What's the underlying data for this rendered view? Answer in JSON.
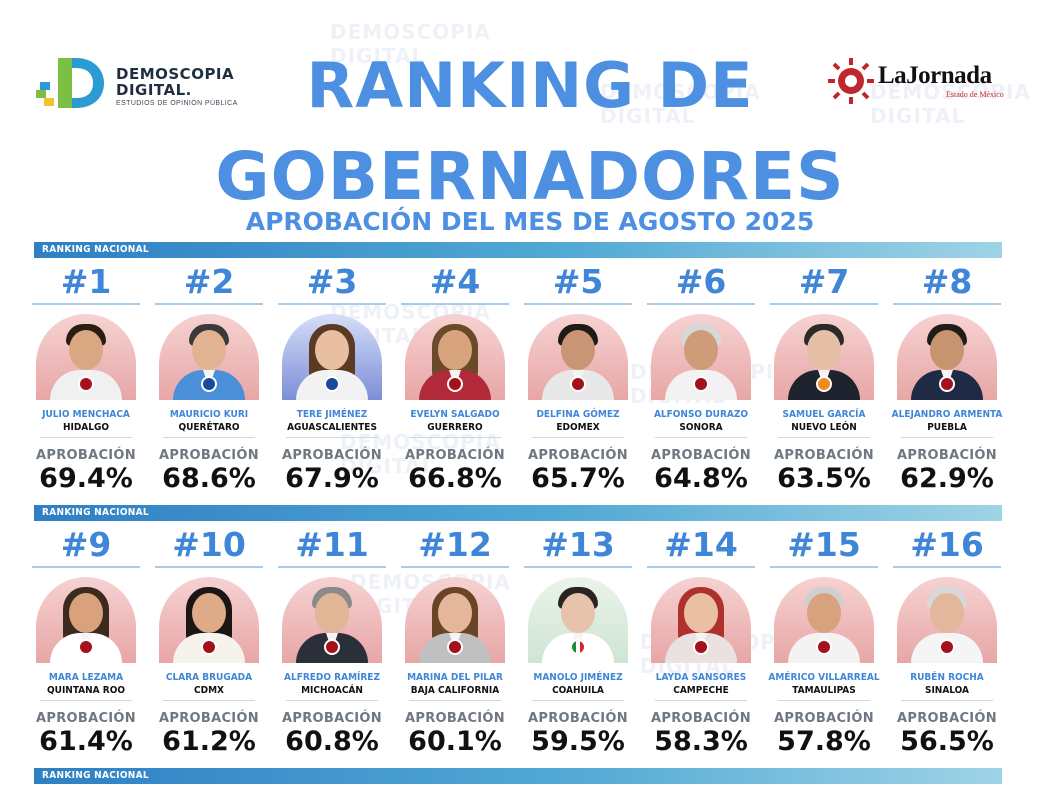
{
  "header": {
    "brand_name_line1": "DEMOSCOPIA",
    "brand_name_line2": "DIGITAL.",
    "brand_tagline": "ESTUDIOS DE OPINIÓN PÚBLICA",
    "title_line1": "RANKING DE",
    "title_line2": "GOBERNADORES",
    "subtitle": "APROBACIÓN DEL MES DE AGOSTO 2025",
    "press_name": "LaJornada",
    "press_tagline": "Estado de México"
  },
  "watermark": {
    "line1": "DEMOSCOPIA",
    "line2": "DIGITAL"
  },
  "section_label": "RANKING NACIONAL",
  "approval_label": "APROBACIÓN",
  "colors": {
    "title": "#4d8fe0",
    "accent": "#3f86d8",
    "bar": "#52a9d4"
  },
  "governors": [
    {
      "rank": "#1",
      "name": "JULIO MENCHACA",
      "state": "HIDALGO",
      "approval": "69.4%",
      "party_icon": "morena-badge-icon"
    },
    {
      "rank": "#2",
      "name": "MAURICIO KURI",
      "state": "QUERÉTARO",
      "approval": "68.6%",
      "party_icon": "pan-badge-icon"
    },
    {
      "rank": "#3",
      "name": "TERE JIMÉNEZ",
      "state": "AGUASCALIENTES",
      "approval": "67.9%",
      "party_icon": "pan-badge-icon"
    },
    {
      "rank": "#4",
      "name": "EVELYN SALGADO",
      "state": "GUERRERO",
      "approval": "66.8%",
      "party_icon": "morena-badge-icon"
    },
    {
      "rank": "#5",
      "name": "DELFINA GÓMEZ",
      "state": "EDOMEX",
      "approval": "65.7%",
      "party_icon": "morena-badge-icon"
    },
    {
      "rank": "#6",
      "name": "ALFONSO DURAZO",
      "state": "SONORA",
      "approval": "64.8%",
      "party_icon": "morena-badge-icon"
    },
    {
      "rank": "#7",
      "name": "SAMUEL GARCÍA",
      "state": "NUEVO LEÓN",
      "approval": "63.5%",
      "party_icon": "mc-badge-icon"
    },
    {
      "rank": "#8",
      "name": "ALEJANDRO ARMENTA",
      "state": "PUEBLA",
      "approval": "62.9%",
      "party_icon": "morena-badge-icon"
    },
    {
      "rank": "#9",
      "name": "MARA LEZAMA",
      "state": "QUINTANA ROO",
      "approval": "61.4%",
      "party_icon": "morena-badge-icon"
    },
    {
      "rank": "#10",
      "name": "CLARA BRUGADA",
      "state": "CDMX",
      "approval": "61.2%",
      "party_icon": "morena-badge-icon"
    },
    {
      "rank": "#11",
      "name": "ALFREDO RAMÍREZ",
      "state": "MICHOACÁN",
      "approval": "60.8%",
      "party_icon": "morena-badge-icon"
    },
    {
      "rank": "#12",
      "name": "MARINA DEL PILAR",
      "state": "BAJA CALIFORNIA",
      "approval": "60.1%",
      "party_icon": "morena-badge-icon"
    },
    {
      "rank": "#13",
      "name": "MANOLO JIMÉNEZ",
      "state": "COAHUILA",
      "approval": "59.5%",
      "party_icon": "pri-badge-icon"
    },
    {
      "rank": "#14",
      "name": "LAYDA SANSORES",
      "state": "CAMPECHE",
      "approval": "58.3%",
      "party_icon": "morena-badge-icon"
    },
    {
      "rank": "#15",
      "name": "AMÉRICO VILLARREAL",
      "state": "TAMAULIPAS",
      "approval": "57.8%",
      "party_icon": "morena-badge-icon"
    },
    {
      "rank": "#16",
      "name": "RUBÉN ROCHA",
      "state": "SINALOA",
      "approval": "56.5%",
      "party_icon": "morena-badge-icon"
    }
  ]
}
